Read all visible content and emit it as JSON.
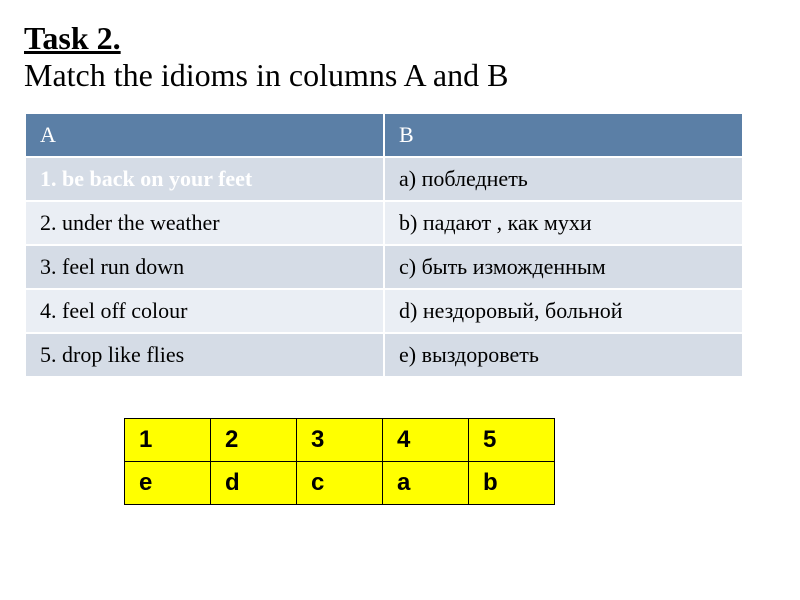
{
  "title": {
    "label": "Task 2.",
    "instruction": "Match the idioms in columns A  and B"
  },
  "matchTable": {
    "headers": {
      "a": "A",
      "b": "B"
    },
    "rows": [
      {
        "a": "1. be back on your feet",
        "b": "a) побледнеть"
      },
      {
        "a": "2. under the weather",
        "b": "b) падают , как мухи"
      },
      {
        "a": "3. feel run down",
        "b": "c) быть изможденным"
      },
      {
        "a": "4. feel off colour",
        "b": "d) нездоровый, больной"
      },
      {
        "a": "5. drop like  flies",
        "b": "e) выздороветь"
      }
    ]
  },
  "answerTable": {
    "numbers": [
      "1",
      "2",
      "3",
      "4",
      "5"
    ],
    "answers": [
      "e",
      "d",
      "c",
      "a",
      "b"
    ]
  },
  "styling": {
    "header_bg": "#5b7fa6",
    "header_text": "#ffffff",
    "row_light_bg": "#eaeef4",
    "row_dark_bg": "#d5dce6",
    "highlight_text": "#ffffff",
    "answer_bg": "#ffff00",
    "answer_border": "#000000",
    "title_fontsize": 32,
    "table_fontsize": 22,
    "answer_fontsize": 24
  }
}
